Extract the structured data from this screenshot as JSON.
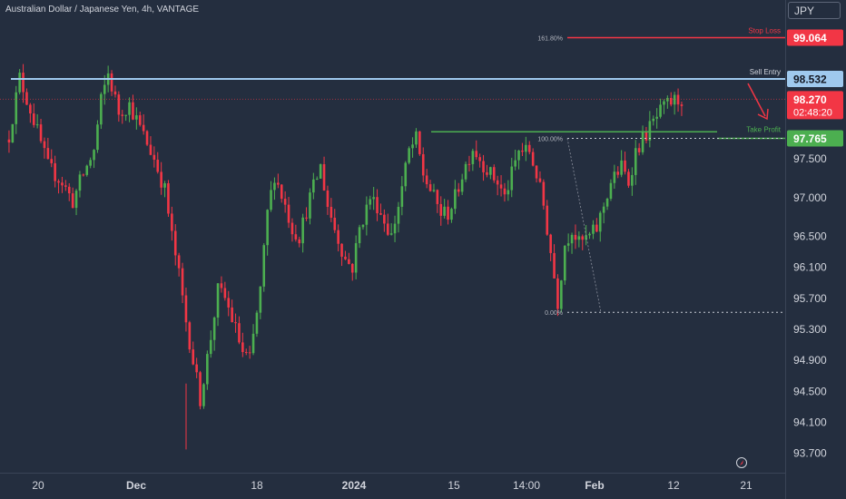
{
  "header": {
    "title": "Australian Dollar / Japanese Yen, 4h, VANTAGE",
    "currency": "JPY"
  },
  "colors": {
    "background": "#242e3f",
    "up": "#4caf50",
    "down": "#f23645",
    "sell_entry": "#9fc9ee",
    "stop_loss": "#f23645",
    "take_profit": "#4caf50",
    "axis_text": "#d1d4dc"
  },
  "chart_data": {
    "type": "candlestick",
    "symbol": "AUDJPY",
    "timeframe": "4h",
    "ylim": [
      93.45,
      99.55
    ],
    "y_ticks": [
      "97.500",
      "97.000",
      "96.500",
      "96.100",
      "95.700",
      "95.300",
      "94.900",
      "94.500",
      "94.100",
      "93.700"
    ],
    "x_ticks": [
      "20",
      "Dec",
      "18",
      "2024",
      "15",
      "14:00",
      "Feb",
      "12",
      "21"
    ],
    "price_badges": {
      "stop_loss": "99.064",
      "sell_entry": "98.532",
      "current_price": "98.270",
      "countdown": "02:48:20",
      "take_profit": "97.765"
    },
    "annotations": {
      "stop_loss_label": "Stop Loss",
      "sell_entry_label": "Sell Entry",
      "take_profit_label": "Take Profit"
    },
    "fibonacci": {
      "levels": [
        {
          "label": "161.80%",
          "price": 99.064
        },
        {
          "label": "100.00%",
          "price": 97.765
        },
        {
          "label": "0.00%",
          "price": 95.52
        }
      ]
    },
    "support_resistance": {
      "resistance": 98.532,
      "support_line": 97.85
    },
    "close_path": [
      [
        0,
        97.8
      ],
      [
        3,
        98.55
      ],
      [
        7,
        98.0
      ],
      [
        11,
        97.4
      ],
      [
        15,
        97.2
      ],
      [
        18,
        96.95
      ],
      [
        20,
        97.2
      ],
      [
        24,
        97.6
      ],
      [
        26,
        98.25
      ],
      [
        28,
        98.6
      ],
      [
        31,
        98.1
      ],
      [
        34,
        98.2
      ],
      [
        38,
        97.8
      ],
      [
        41,
        97.5
      ],
      [
        44,
        97.1
      ],
      [
        46,
        96.5
      ],
      [
        48,
        96.0
      ],
      [
        50,
        95.4
      ],
      [
        52,
        94.9
      ],
      [
        54,
        94.4
      ],
      [
        57,
        95.2
      ],
      [
        59,
        95.8
      ],
      [
        61,
        95.7
      ],
      [
        64,
        95.3
      ],
      [
        66,
        95.0
      ],
      [
        68,
        94.9
      ],
      [
        71,
        95.8
      ],
      [
        73,
        96.8
      ],
      [
        75,
        97.3
      ],
      [
        78,
        96.9
      ],
      [
        80,
        96.6
      ],
      [
        82,
        96.5
      ],
      [
        85,
        97.0
      ],
      [
        88,
        97.4
      ],
      [
        90,
        96.9
      ],
      [
        92,
        96.6
      ],
      [
        95,
        96.2
      ],
      [
        97,
        96.1
      ],
      [
        99,
        96.6
      ],
      [
        102,
        97.0
      ],
      [
        104,
        96.9
      ],
      [
        106,
        96.7
      ],
      [
        108,
        96.5
      ],
      [
        110,
        96.9
      ],
      [
        113,
        97.6
      ],
      [
        115,
        97.75
      ],
      [
        117,
        97.3
      ],
      [
        119,
        97.1
      ],
      [
        122,
        96.8
      ],
      [
        124,
        96.8
      ],
      [
        126,
        97.0
      ],
      [
        128,
        97.3
      ],
      [
        131,
        97.65
      ],
      [
        133,
        97.5
      ],
      [
        136,
        97.3
      ],
      [
        138,
        97.2
      ],
      [
        140,
        97.0
      ],
      [
        142,
        97.3
      ],
      [
        144,
        97.6
      ],
      [
        147,
        97.6
      ],
      [
        149,
        97.3
      ],
      [
        151,
        96.9
      ],
      [
        153,
        96.3
      ],
      [
        155,
        95.65
      ],
      [
        157,
        96.4
      ],
      [
        159,
        96.6
      ],
      [
        161,
        96.4
      ],
      [
        164,
        96.5
      ],
      [
        166,
        96.6
      ],
      [
        168,
        96.9
      ],
      [
        170,
        97.2
      ],
      [
        173,
        97.4
      ],
      [
        175,
        97.2
      ],
      [
        177,
        97.6
      ],
      [
        179,
        97.75
      ],
      [
        181,
        97.9
      ],
      [
        184,
        98.1
      ],
      [
        186,
        98.2
      ],
      [
        188,
        98.25
      ],
      [
        190,
        98.27
      ]
    ]
  }
}
